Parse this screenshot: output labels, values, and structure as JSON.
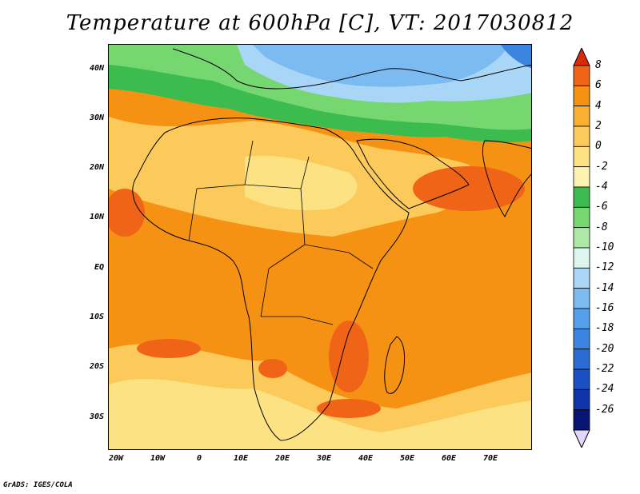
{
  "title": "Temperature at 600hPa [C], VT: 2017030812",
  "footer": "GrADS: IGES/COLA",
  "map": {
    "lat_labels": [
      "40N",
      "30N",
      "20N",
      "10N",
      "EQ",
      "10S",
      "20S",
      "30S"
    ],
    "lon_labels": [
      "20W",
      "10W",
      "0",
      "10E",
      "20E",
      "30E",
      "40E",
      "50E",
      "60E",
      "70E"
    ]
  },
  "colorbar": {
    "labels": [
      "8",
      "6",
      "4",
      "2",
      "0",
      "-2",
      "-4",
      "-6",
      "-8",
      "-10",
      "-12",
      "-14",
      "-16",
      "-18",
      "-20",
      "-22",
      "-24",
      "-26"
    ],
    "colors": [
      "#d92b0c",
      "#f06418",
      "#f69213",
      "#f9af30",
      "#fcca5a",
      "#fce283",
      "#fdf3b0",
      "#3cbc4e",
      "#76d670",
      "#aee8a6",
      "#dcf6ee",
      "#a9d6f6",
      "#7cbbf2",
      "#55a0ec",
      "#3b85e1",
      "#2a6bd4",
      "#1b4fc2",
      "#0f33a8",
      "#081575",
      "#e1d6fb"
    ]
  }
}
